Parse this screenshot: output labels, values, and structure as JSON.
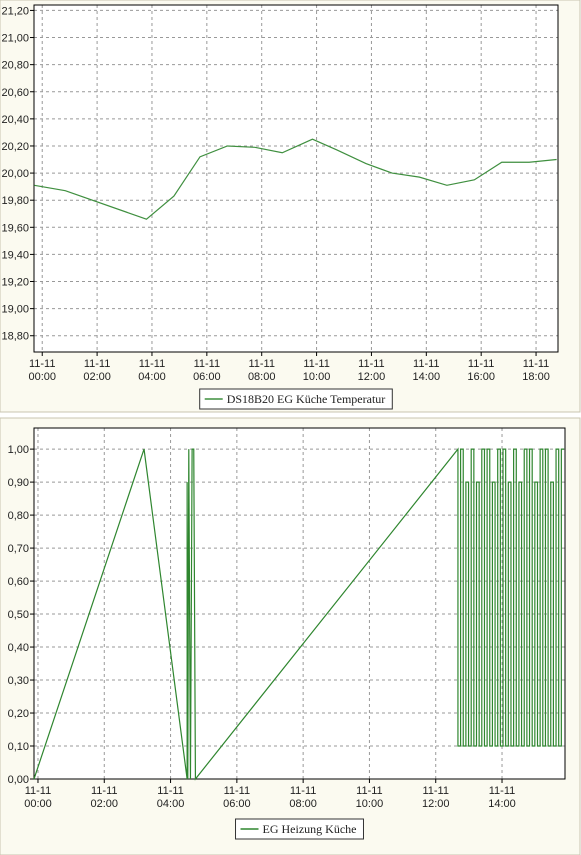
{
  "chart_data": [
    {
      "type": "line",
      "x": [
        -0.29,
        0.84,
        3.8,
        4.8,
        5.75,
        6.75,
        7.75,
        8.75,
        9.85,
        10.75,
        11.8,
        12.75,
        13.75,
        14.75,
        15.75,
        16.75,
        17.75,
        18.75
      ],
      "series": [
        {
          "name": "DS18B20 EG Küche Temperatur",
          "color": "#3f8f3f",
          "values": [
            19.91,
            19.87,
            19.66,
            19.83,
            20.12,
            20.2,
            20.19,
            20.15,
            20.25,
            20.17,
            20.07,
            20.0,
            19.97,
            19.91,
            19.95,
            20.08,
            20.08,
            20.1
          ]
        }
      ],
      "xlim": [
        -0.3,
        18.8
      ],
      "ylim": [
        18.68,
        21.24
      ],
      "xticks": [
        {
          "value": 0,
          "label": "11-11 00:00"
        },
        {
          "value": 2,
          "label": "11-11 02:00"
        },
        {
          "value": 4,
          "label": "11-11 04:00"
        },
        {
          "value": 6,
          "label": "11-11 06:00"
        },
        {
          "value": 8,
          "label": "11-11 08:00"
        },
        {
          "value": 10,
          "label": "11-11 10:00"
        },
        {
          "value": 12,
          "label": "11-11 12:00"
        },
        {
          "value": 14,
          "label": "11-11 14:00"
        },
        {
          "value": 16,
          "label": "11-11 16:00"
        },
        {
          "value": 18,
          "label": "11-11 18:00"
        }
      ],
      "yticks": [
        {
          "value": 18.8,
          "label": "18,80"
        },
        {
          "value": 19.0,
          "label": "19,00"
        },
        {
          "value": 19.2,
          "label": "19,20"
        },
        {
          "value": 19.4,
          "label": "19,40"
        },
        {
          "value": 19.6,
          "label": "19,60"
        },
        {
          "value": 19.8,
          "label": "19,80"
        },
        {
          "value": 20.0,
          "label": "20,00"
        },
        {
          "value": 20.2,
          "label": "20,20"
        },
        {
          "value": 20.4,
          "label": "20,40"
        },
        {
          "value": 20.6,
          "label": "20,60"
        },
        {
          "value": 20.8,
          "label": "20,80"
        },
        {
          "value": 21.0,
          "label": "21,00"
        },
        {
          "value": 21.2,
          "label": "21,20"
        }
      ],
      "grid": true
    },
    {
      "type": "line",
      "x": [
        -0.12,
        3.2,
        4.5,
        4.5,
        4.52,
        4.55,
        4.6,
        4.65,
        4.7,
        4.75,
        12.67,
        12.67,
        12.75,
        12.75,
        12.83,
        12.83,
        12.91,
        12.91,
        12.99,
        12.99,
        13.07,
        13.07,
        13.15,
        13.15,
        13.23,
        13.23,
        13.31,
        13.31,
        13.39,
        13.39,
        13.47,
        13.47,
        13.55,
        13.55,
        13.63,
        13.63,
        13.71,
        13.71,
        13.79,
        13.79,
        13.87,
        13.87,
        13.95,
        13.95,
        14.03,
        14.03,
        14.11,
        14.11,
        14.19,
        14.19,
        14.27,
        14.27,
        14.35,
        14.35,
        14.43,
        14.43,
        14.51,
        14.51,
        14.59,
        14.59,
        14.67,
        14.67,
        14.75,
        14.75,
        14.83,
        14.83,
        14.91,
        14.91,
        14.99,
        14.99,
        15.07,
        15.07,
        15.15,
        15.15,
        15.23,
        15.23,
        15.31,
        15.31,
        15.39,
        15.39,
        15.47,
        15.47,
        15.55,
        15.55,
        15.63,
        15.63,
        15.71,
        15.71,
        15.79,
        15.79,
        15.87
      ],
      "series": [
        {
          "name": "EG Heizung Küche",
          "color": "#2f862f",
          "values": [
            0,
            1,
            0,
            0.9,
            0,
            1,
            0,
            1,
            1,
            0,
            1,
            0.1,
            0.1,
            1,
            1,
            0.1,
            0.1,
            0.9,
            0.9,
            0.1,
            0.1,
            1,
            1,
            0.1,
            0.1,
            0.9,
            0.9,
            0.1,
            0.1,
            1,
            1,
            0.1,
            0.1,
            1,
            1,
            0.1,
            0.1,
            0.9,
            0.9,
            0.1,
            0.1,
            1,
            1,
            0.1,
            0.1,
            1,
            1,
            0.1,
            0.1,
            0.9,
            0.9,
            0.1,
            0.1,
            1,
            1,
            0.1,
            0.1,
            0.9,
            0.9,
            0.1,
            0.1,
            1,
            1,
            0.1,
            0.1,
            1,
            1,
            0.1,
            0.1,
            0.9,
            0.9,
            0.1,
            0.1,
            1,
            1,
            0.1,
            0.1,
            1,
            1,
            0.1,
            0.1,
            0.9,
            0.9,
            0.1,
            0.1,
            1,
            1,
            0.1,
            0.1,
            1,
            1
          ]
        }
      ],
      "xlim": [
        -0.12,
        15.9
      ],
      "ylim": [
        0,
        1.064
      ],
      "xticks": [
        {
          "value": 0,
          "label": "11-11 00:00"
        },
        {
          "value": 2,
          "label": "11-11 02:00"
        },
        {
          "value": 4,
          "label": "11-11 04:00"
        },
        {
          "value": 6,
          "label": "11-11 06:00"
        },
        {
          "value": 8,
          "label": "11-11 08:00"
        },
        {
          "value": 10,
          "label": "11-11 10:00"
        },
        {
          "value": 12,
          "label": "11-11 12:00"
        },
        {
          "value": 14,
          "label": "11-11 14:00"
        }
      ],
      "yticks": [
        {
          "value": 0,
          "label": "0,00"
        },
        {
          "value": 0.1,
          "label": "0,10"
        },
        {
          "value": 0.2,
          "label": "0,20"
        },
        {
          "value": 0.3,
          "label": "0,30"
        },
        {
          "value": 0.4,
          "label": "0,40"
        },
        {
          "value": 0.5,
          "label": "0,50"
        },
        {
          "value": 0.6,
          "label": "0,60"
        },
        {
          "value": 0.7,
          "label": "0,70"
        },
        {
          "value": 0.8,
          "label": "0,80"
        },
        {
          "value": 0.9,
          "label": "0,90"
        },
        {
          "value": 1.0,
          "label": "1,00"
        }
      ],
      "grid": true
    }
  ]
}
